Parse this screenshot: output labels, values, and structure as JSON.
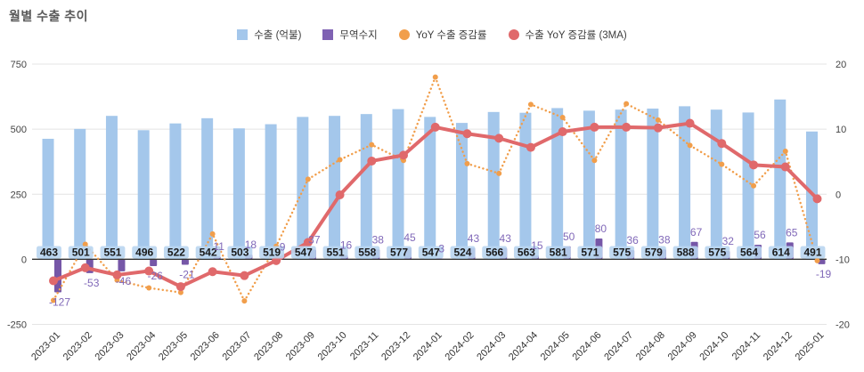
{
  "title": "월별 수출 추이",
  "legend": [
    {
      "label": "수출 (억불)",
      "marker": "square",
      "color": "#a4c7eb"
    },
    {
      "label": "무역수지",
      "marker": "square",
      "color": "#7f62b3"
    },
    {
      "label": "YoY 수출 증감률",
      "marker": "circle",
      "color": "#f19e4b"
    },
    {
      "label": "수출 YoY 증감률 (3MA)",
      "marker": "circle",
      "color": "#e0696b"
    }
  ],
  "axes": {
    "left_ticks": [
      "750",
      "500",
      "250",
      "0",
      "-250"
    ],
    "left_values": [
      750,
      500,
      250,
      0,
      -250
    ],
    "right_ticks": [
      "20",
      "10",
      "0",
      "-10",
      "-20"
    ],
    "right_values": [
      20,
      10,
      0,
      -10,
      -20
    ]
  },
  "colors": {
    "export_bar": "#a4c7eb",
    "export_label_pill": "#b9d5f0",
    "export_label_text": "#1a1a1a",
    "balance_bar": "#7657a7",
    "balance_label": "#8068b8",
    "yoy_line": "#f19e4b",
    "ma_line": "#e0696b",
    "grid": "#e4e4e4",
    "zero_line": "#333333",
    "axis_text": "#444444",
    "x_label_text": "#333333"
  },
  "chart_data": {
    "type": "bar",
    "subtype": "combo bar+line, dual axis",
    "title": "월별 수출 추이",
    "categories": [
      "2023-01",
      "2023-02",
      "2023-03",
      "2023-04",
      "2023-05",
      "2023-06",
      "2023-07",
      "2023-08",
      "2023-09",
      "2023-10",
      "2023-11",
      "2023-12",
      "2024-01",
      "2024-02",
      "2024-03",
      "2024-04",
      "2024-05",
      "2024-06",
      "2024-07",
      "2024-08",
      "2024-09",
      "2024-10",
      "2024-11",
      "2024-12",
      "2025-01"
    ],
    "series": [
      {
        "name": "수출 (억불)",
        "type": "bar",
        "axis": "left",
        "values": [
          463,
          501,
          551,
          496,
          522,
          542,
          503,
          519,
          547,
          551,
          558,
          577,
          547,
          524,
          566,
          563,
          581,
          571,
          575,
          579,
          588,
          575,
          564,
          614,
          491
        ]
      },
      {
        "name": "무역수지",
        "type": "bar",
        "axis": "left",
        "values": [
          -127,
          -53,
          -46,
          -26,
          -21,
          11,
          18,
          9,
          37,
          16,
          38,
          45,
          3,
          43,
          43,
          15,
          50,
          80,
          36,
          38,
          67,
          32,
          56,
          65,
          -19
        ]
      },
      {
        "name": "YoY 수출 증감률",
        "type": "line-dotted",
        "axis": "right",
        "values": [
          -16.3,
          -7.7,
          -13.2,
          -14.4,
          -15.1,
          -6.1,
          -16.4,
          -8.0,
          2.3,
          5.3,
          7.6,
          5.2,
          18.0,
          4.7,
          3.2,
          13.8,
          11.8,
          5.2,
          13.9,
          11.4,
          7.5,
          4.6,
          1.3,
          6.6,
          -10.2
        ]
      },
      {
        "name": "수출 YoY 증감률 (3MA)",
        "type": "line",
        "axis": "right",
        "values": [
          -13.3,
          -11.3,
          -12.4,
          -11.8,
          -14.2,
          -11.9,
          -12.5,
          -10.2,
          -7.4,
          -0.1,
          5.1,
          6.0,
          10.3,
          9.3,
          8.6,
          7.2,
          9.6,
          10.3,
          10.3,
          10.2,
          10.9,
          7.8,
          4.5,
          4.2,
          -0.7
        ]
      }
    ],
    "ylim_left": [
      -250,
      750
    ],
    "ylim_right": [
      -20,
      20
    ],
    "grid": true,
    "legend_position": "top",
    "x_label_rotation": -45
  }
}
